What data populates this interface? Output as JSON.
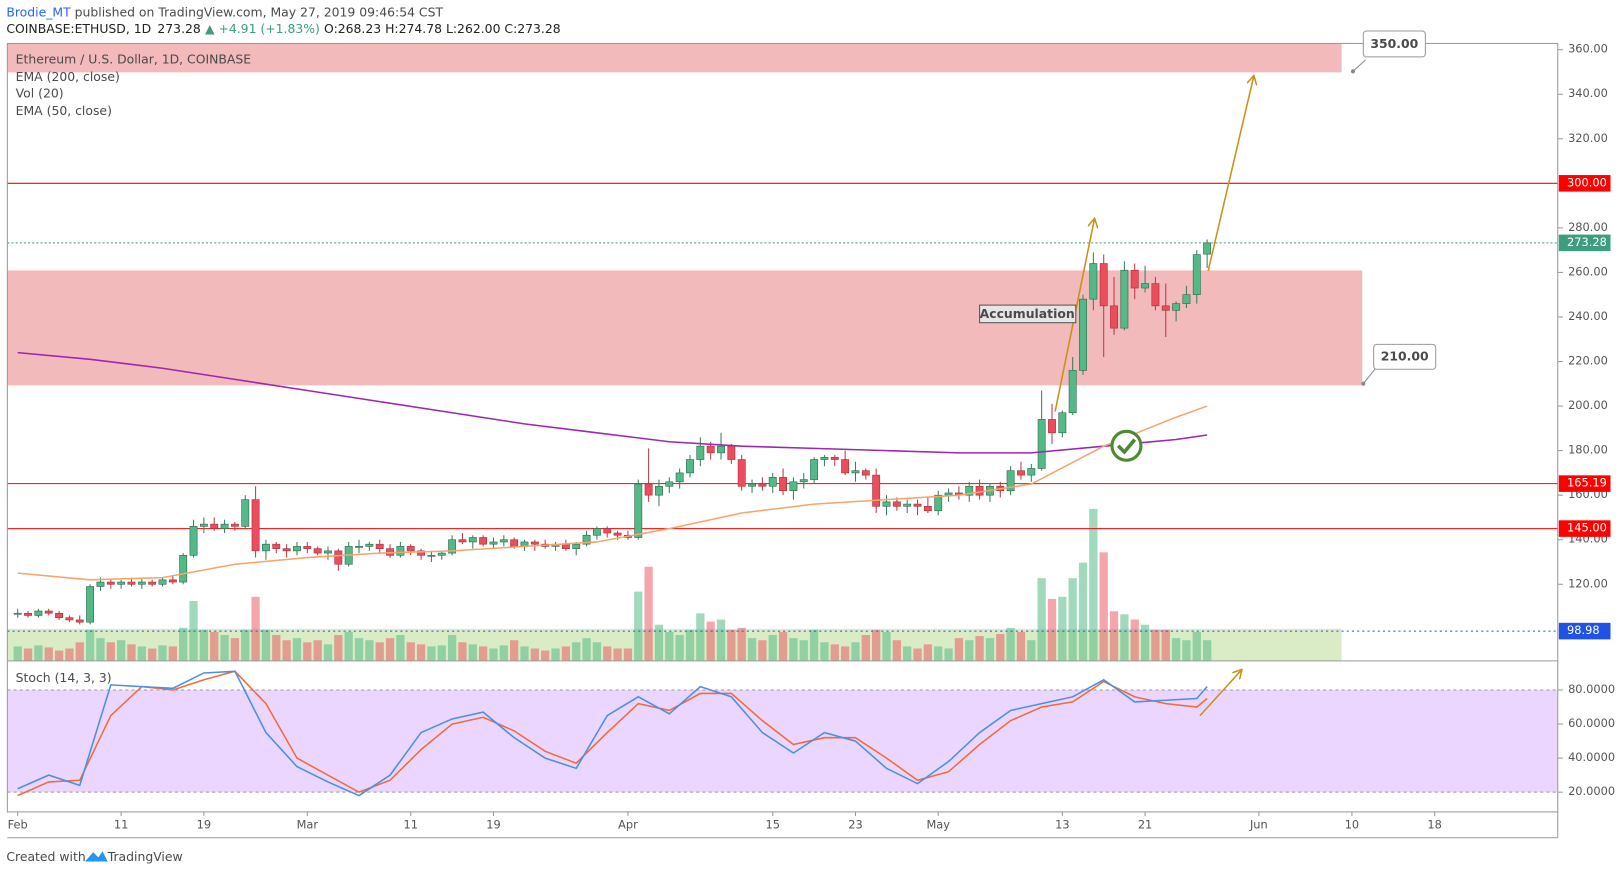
{
  "header": {
    "author": "Brodie_MT",
    "published": " published on TradingView.com, May 27, 2019 09:46:54 CST",
    "symbol": "COINBASE:ETHUSD, 1D",
    "price": "273.28",
    "change": "▲ +4.91 (+1.83%)",
    "ohlc": "O:268.23 H:274.78 L:262.00 C:273.28"
  },
  "footer": {
    "created": "Created with",
    "brand": "TradingView"
  },
  "chart_data": {
    "type": "candlestick",
    "title": "Ethereum / U.S. Dollar, 1D, COINBASE",
    "up_color": "#53b987",
    "down_color": "#eb4d5c",
    "ylim": [
      85.6,
      362.8
    ],
    "yticks": [
      {
        "value": 120,
        "label": "120.00"
      },
      {
        "value": 140,
        "label": "140.00"
      },
      {
        "value": 160,
        "label": "160.00"
      },
      {
        "value": 180,
        "label": "180.00"
      },
      {
        "value": 200,
        "label": "200.00"
      },
      {
        "value": 220,
        "label": "220.00"
      },
      {
        "value": 240,
        "label": "240.00"
      },
      {
        "value": 260,
        "label": "260.00"
      },
      {
        "value": 280,
        "label": "280.00"
      },
      {
        "value": 320,
        "label": "320.00"
      },
      {
        "value": 340,
        "label": "340.00"
      },
      {
        "value": 360,
        "label": "360.00"
      }
    ],
    "xticks": [
      {
        "value": 0,
        "label": "Feb"
      },
      {
        "value": 10,
        "label": "11"
      },
      {
        "value": 18,
        "label": "19"
      },
      {
        "value": 28,
        "label": "Mar"
      },
      {
        "value": 38,
        "label": "11"
      },
      {
        "value": 46,
        "label": "19"
      },
      {
        "value": 59,
        "label": "Apr"
      },
      {
        "value": 73,
        "label": "15"
      },
      {
        "value": 81,
        "label": "23"
      },
      {
        "value": 89,
        "label": "May"
      },
      {
        "value": 101,
        "label": "13"
      },
      {
        "value": 109,
        "label": "21"
      },
      {
        "value": 120,
        "label": "Jun"
      },
      {
        "value": 129,
        "label": "10"
      },
      {
        "value": 137,
        "label": "18"
      }
    ],
    "candles": [
      [
        107,
        109,
        105,
        107
      ],
      [
        107,
        108,
        105,
        106
      ],
      [
        106,
        109,
        105,
        108
      ],
      [
        108,
        109,
        106,
        107
      ],
      [
        107,
        108,
        104,
        105
      ],
      [
        105,
        106,
        103,
        104
      ],
      [
        104,
        106,
        102,
        103
      ],
      [
        103,
        120,
        102,
        119
      ],
      [
        119,
        123,
        117,
        121
      ],
      [
        121,
        122,
        118,
        120
      ],
      [
        120,
        122,
        118,
        121
      ],
      [
        121,
        123,
        119,
        120
      ],
      [
        120,
        123,
        118,
        121
      ],
      [
        121,
        122,
        119,
        120
      ],
      [
        120,
        123,
        119,
        122
      ],
      [
        122,
        124,
        120,
        121
      ],
      [
        121,
        134,
        120,
        133
      ],
      [
        133,
        149,
        132,
        146
      ],
      [
        146,
        150,
        143,
        147
      ],
      [
        147,
        150,
        144,
        145
      ],
      [
        145,
        149,
        143,
        147
      ],
      [
        147,
        148,
        144,
        146
      ],
      [
        146,
        160,
        145,
        158
      ],
      [
        158,
        164,
        132,
        135
      ],
      [
        135,
        140,
        131,
        138
      ],
      [
        138,
        139,
        134,
        136
      ],
      [
        136,
        138,
        132,
        135
      ],
      [
        135,
        139,
        133,
        137
      ],
      [
        137,
        139,
        134,
        136
      ],
      [
        136,
        137,
        133,
        134
      ],
      [
        134,
        137,
        131,
        135
      ],
      [
        135,
        136,
        126,
        129
      ],
      [
        129,
        139,
        128,
        137
      ],
      [
        137,
        140,
        134,
        137
      ],
      [
        137,
        139,
        135,
        138
      ],
      [
        138,
        140,
        134,
        136
      ],
      [
        136,
        138,
        132,
        133
      ],
      [
        133,
        139,
        132,
        137
      ],
      [
        137,
        138,
        133,
        135
      ],
      [
        135,
        136,
        131,
        133
      ],
      [
        133,
        135,
        130,
        133
      ],
      [
        133,
        135,
        131,
        134
      ],
      [
        134,
        142,
        133,
        140
      ],
      [
        140,
        143,
        138,
        139
      ],
      [
        139,
        142,
        136,
        141
      ],
      [
        141,
        142,
        137,
        138
      ],
      [
        138,
        141,
        136,
        139
      ],
      [
        139,
        142,
        137,
        140
      ],
      [
        140,
        141,
        136,
        137
      ],
      [
        137,
        140,
        135,
        139
      ],
      [
        139,
        140,
        135,
        138
      ],
      [
        138,
        140,
        136,
        137
      ],
      [
        137,
        139,
        135,
        138
      ],
      [
        138,
        140,
        135,
        136
      ],
      [
        136,
        139,
        133,
        138
      ],
      [
        138,
        144,
        137,
        142
      ],
      [
        142,
        146,
        140,
        145
      ],
      [
        145,
        146,
        141,
        143
      ],
      [
        143,
        144,
        140,
        142
      ],
      [
        142,
        144,
        140,
        141
      ],
      [
        141,
        167,
        140,
        165
      ],
      [
        165,
        181,
        157,
        160
      ],
      [
        160,
        167,
        155,
        164
      ],
      [
        164,
        168,
        161,
        166
      ],
      [
        166,
        172,
        163,
        170
      ],
      [
        170,
        178,
        168,
        176
      ],
      [
        176,
        186,
        173,
        182
      ],
      [
        182,
        184,
        176,
        179
      ],
      [
        179,
        188,
        176,
        182
      ],
      [
        182,
        183,
        174,
        176
      ],
      [
        176,
        178,
        162,
        164
      ],
      [
        164,
        167,
        161,
        165
      ],
      [
        165,
        168,
        162,
        164
      ],
      [
        164,
        170,
        161,
        168
      ],
      [
        168,
        172,
        160,
        162
      ],
      [
        162,
        168,
        158,
        166
      ],
      [
        166,
        170,
        163,
        167
      ],
      [
        167,
        177,
        165,
        176
      ],
      [
        176,
        178,
        173,
        177
      ],
      [
        177,
        178,
        173,
        176
      ],
      [
        176,
        180,
        169,
        170
      ],
      [
        170,
        175,
        166,
        171
      ],
      [
        171,
        172,
        167,
        169
      ],
      [
        169,
        172,
        152,
        155
      ],
      [
        155,
        160,
        151,
        157
      ],
      [
        157,
        159,
        153,
        155
      ],
      [
        155,
        158,
        152,
        156
      ],
      [
        156,
        158,
        151,
        155
      ],
      [
        155,
        159,
        152,
        153
      ],
      [
        153,
        162,
        151,
        160
      ],
      [
        160,
        163,
        157,
        161
      ],
      [
        161,
        164,
        158,
        160
      ],
      [
        160,
        166,
        157,
        164
      ],
      [
        164,
        167,
        158,
        160
      ],
      [
        160,
        165,
        157,
        164
      ],
      [
        164,
        166,
        159,
        162
      ],
      [
        162,
        173,
        160,
        171
      ],
      [
        171,
        175,
        167,
        169
      ],
      [
        169,
        174,
        166,
        172
      ],
      [
        172,
        207,
        171,
        194
      ],
      [
        194,
        201,
        183,
        188
      ],
      [
        188,
        198,
        186,
        197
      ],
      [
        197,
        222,
        196,
        216
      ],
      [
        216,
        250,
        214,
        248
      ],
      [
        248,
        269,
        243,
        264
      ],
      [
        264,
        268,
        222,
        245
      ],
      [
        245,
        258,
        232,
        235
      ],
      [
        235,
        265,
        234,
        261
      ],
      [
        261,
        264,
        248,
        253
      ],
      [
        253,
        263,
        251,
        255
      ],
      [
        255,
        258,
        243,
        245
      ],
      [
        245,
        255,
        231,
        243
      ],
      [
        243,
        247,
        238,
        246
      ],
      [
        246,
        254,
        244,
        250
      ],
      [
        250,
        270,
        246,
        268
      ],
      [
        268.23,
        274.78,
        262,
        273.28
      ]
    ],
    "volume": {
      "name": "Vol (20)",
      "ylim": [
        0,
        160
      ],
      "up_color": "rgba(83,185,135,0.55)",
      "down_color": "rgba(235,77,92,0.5)",
      "values": [
        14,
        12,
        15,
        13,
        10,
        12,
        18,
        30,
        22,
        18,
        20,
        16,
        14,
        12,
        15,
        14,
        32,
        58,
        30,
        28,
        25,
        22,
        30,
        62,
        30,
        25,
        20,
        22,
        18,
        20,
        16,
        25,
        28,
        22,
        20,
        18,
        22,
        25,
        18,
        16,
        14,
        15,
        25,
        18,
        16,
        14,
        12,
        15,
        20,
        14,
        12,
        10,
        12,
        14,
        18,
        22,
        18,
        14,
        12,
        12,
        67,
        91,
        35,
        28,
        25,
        30,
        46,
        38,
        40,
        30,
        32,
        22,
        20,
        25,
        28,
        22,
        20,
        30,
        18,
        16,
        14,
        18,
        25,
        30,
        28,
        20,
        14,
        12,
        16,
        14,
        12,
        22,
        20,
        24,
        22,
        26,
        32,
        28,
        20,
        80,
        60,
        62,
        80,
        95,
        147,
        105,
        48,
        45,
        40,
        35,
        30,
        30,
        22,
        20,
        28,
        20
      ]
    },
    "series": [
      {
        "name": "EMA (200, close)",
        "color": "#9c27b0",
        "x": [
          0,
          7,
          14,
          21,
          28,
          35,
          42,
          49,
          56,
          63,
          70,
          77,
          84,
          91,
          98,
          105,
          112,
          115
        ],
        "values": [
          224,
          221,
          217,
          212,
          207,
          202,
          197,
          192,
          188,
          184,
          182,
          181,
          180,
          179,
          179,
          182,
          185,
          187
        ]
      },
      {
        "name": "EMA (50, close)",
        "color": "#f7a468",
        "x": [
          0,
          7,
          14,
          21,
          28,
          35,
          42,
          49,
          56,
          63,
          70,
          77,
          84,
          91,
          98,
          105,
          112,
          115
        ],
        "values": [
          125,
          122,
          123,
          129,
          132,
          134,
          135,
          137,
          139,
          145,
          152,
          156,
          158,
          160,
          165,
          182,
          195,
          200
        ]
      }
    ],
    "levels": [
      {
        "value": 300,
        "label": "300.00",
        "color": "#ff0000",
        "dash": "none"
      },
      {
        "value": 273.28,
        "label": "273.28",
        "color": "#3c9e7f",
        "dash": "2 2"
      },
      {
        "value": 165.19,
        "label": "165.19",
        "color": "#ff0000",
        "dash": "none"
      },
      {
        "value": 145,
        "label": "145.00",
        "color": "#ff0000",
        "dash": "none"
      },
      {
        "value": 98.98,
        "label": "98.98",
        "color": "#1e53e5",
        "dash": "2 3"
      }
    ],
    "zones": [
      {
        "from": 349.8,
        "to": 362.8,
        "end": 128,
        "color": "rgba(224,90,90,0.42)"
      },
      {
        "from": 209.3,
        "to": 260.9,
        "end": 130,
        "color": "rgba(224,90,90,0.42)"
      },
      {
        "from": 85.6,
        "to": 100,
        "end": 128,
        "color": "rgba(139,195,74,0.32)"
      }
    ],
    "annotations": [
      "Accumulation",
      "350.00",
      "210.00"
    ],
    "stoch": {
      "name": "Stoch (14, 3, 3)",
      "ylim": [
        8.4,
        97.1
      ],
      "band": [
        20,
        80
      ],
      "k_color": "#4a90e2",
      "d_color": "#f26b3a",
      "yticks": [
        {
          "value": 20,
          "label": "20.0000"
        },
        {
          "value": 40,
          "label": "40.0000"
        },
        {
          "value": 60,
          "label": "60.0000"
        },
        {
          "value": 80,
          "label": "80.0000"
        }
      ],
      "x": [
        0,
        3,
        6,
        9,
        12,
        15,
        18,
        21,
        24,
        27,
        30,
        33,
        36,
        39,
        42,
        45,
        48,
        51,
        54,
        57,
        60,
        63,
        66,
        69,
        72,
        75,
        78,
        81,
        84,
        87,
        90,
        93,
        96,
        99,
        102,
        105,
        108,
        111,
        114,
        115
      ],
      "k": [
        22,
        30,
        24,
        83,
        82,
        81,
        90,
        91,
        55,
        35,
        26,
        18,
        30,
        55,
        63,
        67,
        52,
        40,
        34,
        65,
        76,
        66,
        82,
        76,
        55,
        43,
        55,
        50,
        34,
        25,
        38,
        55,
        68,
        72,
        76,
        86,
        73,
        74,
        75,
        82
      ],
      "d": [
        18,
        26,
        27,
        65,
        82,
        80,
        86,
        91,
        72,
        40,
        30,
        20,
        27,
        45,
        60,
        64,
        56,
        44,
        37,
        55,
        72,
        68,
        78,
        78,
        62,
        48,
        52,
        52,
        40,
        27,
        32,
        48,
        62,
        70,
        73,
        85,
        76,
        72,
        70,
        75
      ]
    }
  }
}
